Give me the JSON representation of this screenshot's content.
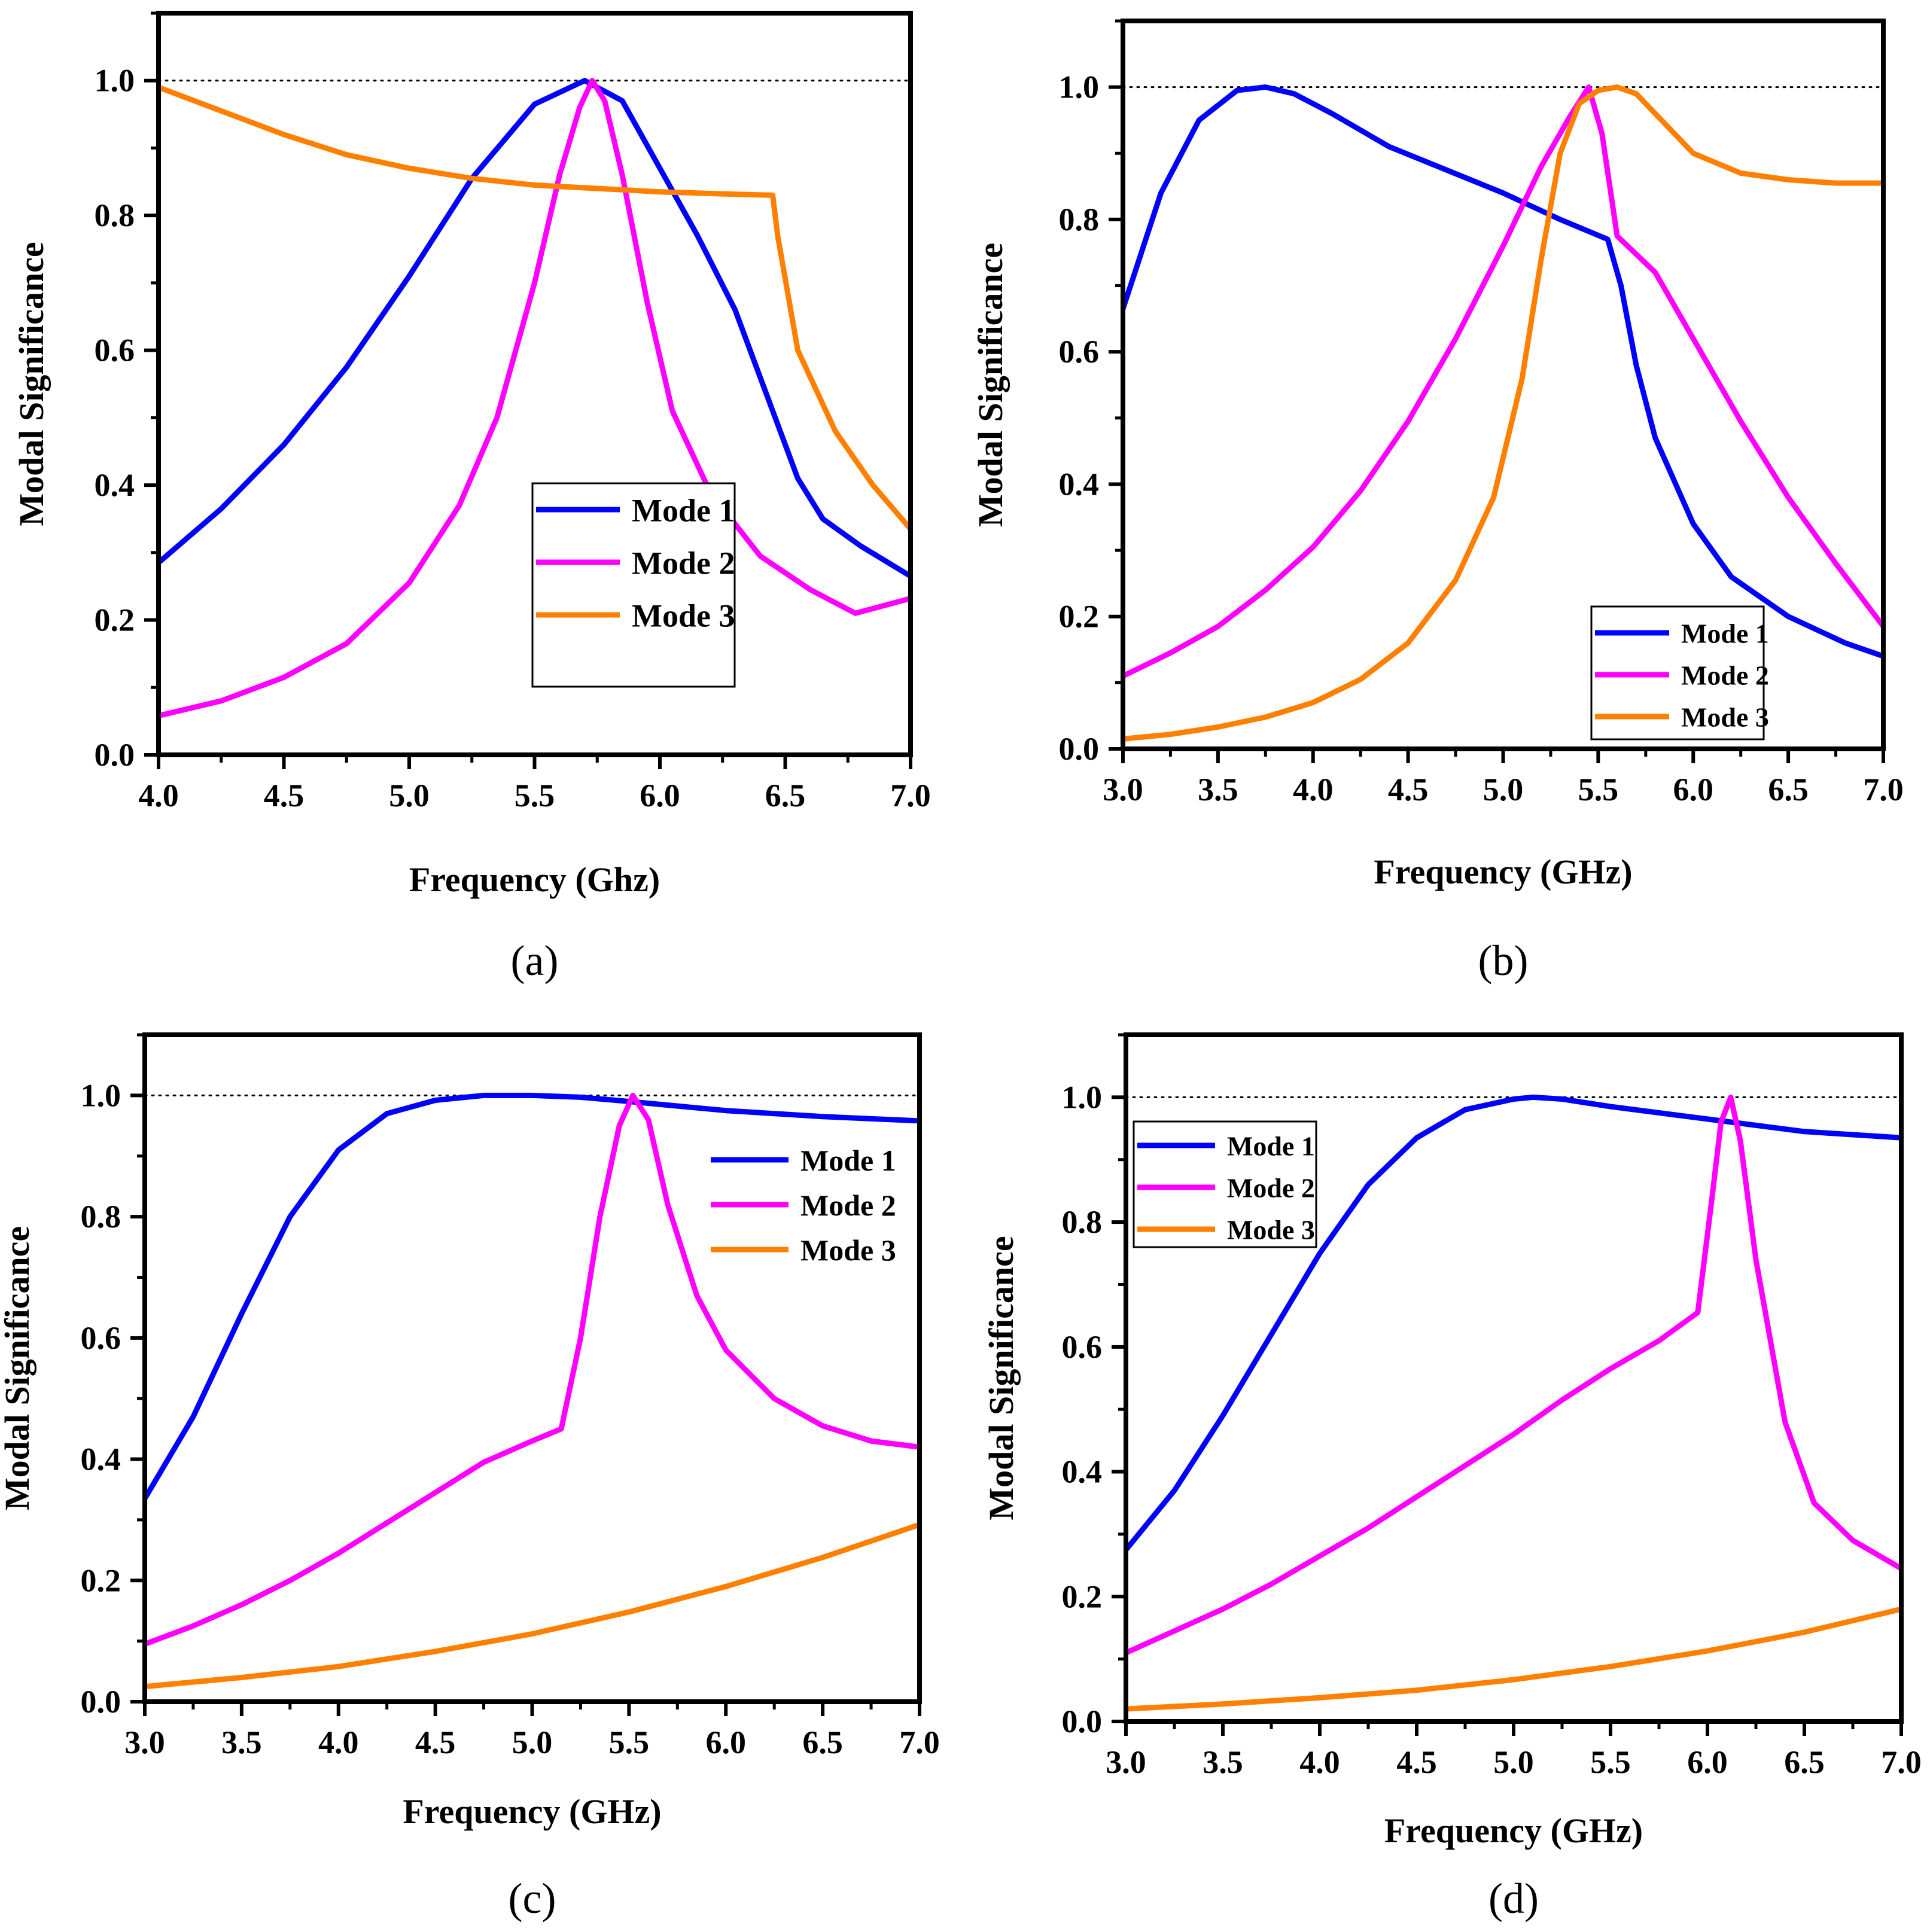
{
  "figure": {
    "mode_colors": {
      "Mode 1": "#0000FF",
      "Mode 2": "#FF00FF",
      "Mode 3": "#FF8000"
    }
  },
  "chart_data": [
    {
      "id": "a",
      "panel_label": "(a)",
      "type": "line",
      "xlabel": "Frequency (Ghz)",
      "ylabel": "Modal Significance",
      "xlim": [
        4.0,
        7.0
      ],
      "ylim": [
        0.0,
        1.1
      ],
      "xticks": [
        4.0,
        4.5,
        5.0,
        5.5,
        6.0,
        6.5,
        7.0
      ],
      "yticks": [
        0.0,
        0.2,
        0.4,
        0.6,
        0.8,
        1.0
      ],
      "xtick_labels": [
        "4.0",
        "4.5",
        "5.0",
        "5.5",
        "6.0",
        "6.5",
        "7.0"
      ],
      "ytick_labels": [
        "0.0",
        "0.2",
        "0.4",
        "0.6",
        "0.8",
        "1.0"
      ],
      "reference_line": 1.0,
      "legend": "center-right",
      "series": [
        {
          "name": "Mode 1",
          "color": "#0000FF",
          "x": [
            4.0,
            4.25,
            4.5,
            4.75,
            5.0,
            5.25,
            5.5,
            5.7,
            5.85,
            6.0,
            6.15,
            6.3,
            6.45,
            6.55,
            6.65,
            6.8,
            7.0
          ],
          "y": [
            0.285,
            0.365,
            0.46,
            0.575,
            0.71,
            0.855,
            0.965,
            1.0,
            0.97,
            0.87,
            0.77,
            0.66,
            0.51,
            0.41,
            0.35,
            0.31,
            0.265
          ]
        },
        {
          "name": "Mode 2",
          "color": "#FF00FF",
          "x": [
            4.0,
            4.25,
            4.5,
            4.75,
            5.0,
            5.2,
            5.35,
            5.5,
            5.6,
            5.68,
            5.73,
            5.78,
            5.85,
            5.95,
            6.05,
            6.2,
            6.4,
            6.6,
            6.78,
            7.0
          ],
          "y": [
            0.058,
            0.08,
            0.115,
            0.165,
            0.255,
            0.37,
            0.5,
            0.7,
            0.86,
            0.96,
            1.0,
            0.97,
            0.86,
            0.67,
            0.51,
            0.39,
            0.295,
            0.245,
            0.21,
            0.232
          ]
        },
        {
          "name": "Mode 3",
          "color": "#FF8000",
          "x": [
            4.0,
            4.25,
            4.5,
            4.75,
            5.0,
            5.25,
            5.5,
            5.75,
            6.0,
            6.25,
            6.45,
            6.47,
            6.55,
            6.7,
            6.85,
            7.0
          ],
          "y": [
            0.99,
            0.955,
            0.92,
            0.89,
            0.87,
            0.855,
            0.845,
            0.84,
            0.835,
            0.832,
            0.83,
            0.77,
            0.6,
            0.48,
            0.4,
            0.335
          ]
        }
      ]
    },
    {
      "id": "b",
      "panel_label": "(b)",
      "type": "line",
      "xlabel": "Frequency (GHz)",
      "ylabel": "Modal Significance",
      "xlim": [
        3.0,
        7.0
      ],
      "ylim": [
        0.0,
        1.1
      ],
      "xticks": [
        3.0,
        3.5,
        4.0,
        4.5,
        5.0,
        5.5,
        6.0,
        6.5,
        7.0
      ],
      "yticks": [
        0.0,
        0.2,
        0.4,
        0.6,
        0.8,
        1.0
      ],
      "xtick_labels": [
        "3.0",
        "3.5",
        "4.0",
        "4.5",
        "5.0",
        "5.5",
        "6.0",
        "6.5",
        "7.0"
      ],
      "ytick_labels": [
        "0.0",
        "0.2",
        "0.4",
        "0.6",
        "0.8",
        "1.0"
      ],
      "reference_line": 1.0,
      "legend": "bottom-right",
      "series": [
        {
          "name": "Mode 1",
          "color": "#0000FF",
          "x": [
            3.0,
            3.2,
            3.4,
            3.6,
            3.75,
            3.9,
            4.1,
            4.4,
            4.7,
            5.0,
            5.3,
            5.55,
            5.62,
            5.7,
            5.8,
            6.0,
            6.2,
            6.5,
            6.8,
            7.0
          ],
          "y": [
            0.665,
            0.84,
            0.95,
            0.995,
            1.0,
            0.99,
            0.96,
            0.91,
            0.875,
            0.84,
            0.8,
            0.77,
            0.7,
            0.58,
            0.47,
            0.34,
            0.26,
            0.2,
            0.16,
            0.14
          ]
        },
        {
          "name": "Mode 2",
          "color": "#FF00FF",
          "x": [
            3.0,
            3.25,
            3.5,
            3.75,
            4.0,
            4.25,
            4.5,
            4.75,
            5.0,
            5.2,
            5.35,
            5.45,
            5.52,
            5.6,
            5.8,
            6.0,
            6.25,
            6.5,
            6.75,
            7.0
          ],
          "y": [
            0.11,
            0.145,
            0.185,
            0.24,
            0.305,
            0.39,
            0.495,
            0.62,
            0.76,
            0.88,
            0.955,
            1.0,
            0.93,
            0.775,
            0.72,
            0.62,
            0.495,
            0.38,
            0.28,
            0.185
          ]
        },
        {
          "name": "Mode 3",
          "color": "#FF8000",
          "x": [
            3.0,
            3.25,
            3.5,
            3.75,
            4.0,
            4.25,
            4.5,
            4.75,
            4.95,
            5.1,
            5.2,
            5.3,
            5.4,
            5.5,
            5.6,
            5.7,
            5.8,
            6.0,
            6.25,
            6.5,
            6.75,
            7.0
          ],
          "y": [
            0.015,
            0.022,
            0.033,
            0.048,
            0.07,
            0.105,
            0.16,
            0.255,
            0.38,
            0.56,
            0.74,
            0.9,
            0.975,
            0.995,
            1.0,
            0.99,
            0.96,
            0.9,
            0.87,
            0.86,
            0.855,
            0.855
          ]
        }
      ]
    },
    {
      "id": "c",
      "panel_label": "(c)",
      "type": "line",
      "xlabel": "Frequency (GHz)",
      "ylabel": "Modal Significance",
      "xlim": [
        3.0,
        7.0
      ],
      "ylim": [
        0.0,
        1.1
      ],
      "xticks": [
        3.0,
        3.5,
        4.0,
        4.5,
        5.0,
        5.5,
        6.0,
        6.5,
        7.0
      ],
      "yticks": [
        0.0,
        0.2,
        0.4,
        0.6,
        0.8,
        1.0
      ],
      "xtick_labels": [
        "3.0",
        "3.5",
        "4.0",
        "4.5",
        "5.0",
        "5.5",
        "6.0",
        "6.5",
        "7.0"
      ],
      "ytick_labels": [
        "0.0",
        "0.2",
        "0.4",
        "0.6",
        "0.8",
        "1.0"
      ],
      "reference_line": 1.0,
      "legend": "top-right",
      "series": [
        {
          "name": "Mode 1",
          "color": "#0000FF",
          "x": [
            3.0,
            3.25,
            3.5,
            3.75,
            4.0,
            4.25,
            4.5,
            4.75,
            5.0,
            5.25,
            5.5,
            6.0,
            6.5,
            7.0
          ],
          "y": [
            0.335,
            0.47,
            0.64,
            0.8,
            0.91,
            0.97,
            0.992,
            1.0,
            1.0,
            0.997,
            0.99,
            0.975,
            0.965,
            0.958
          ]
        },
        {
          "name": "Mode 2",
          "color": "#FF00FF",
          "x": [
            3.0,
            3.25,
            3.5,
            3.75,
            4.0,
            4.25,
            4.5,
            4.75,
            5.0,
            5.15,
            5.25,
            5.35,
            5.45,
            5.52,
            5.6,
            5.7,
            5.85,
            6.0,
            6.25,
            6.5,
            6.75,
            7.0
          ],
          "y": [
            0.095,
            0.125,
            0.16,
            0.2,
            0.245,
            0.295,
            0.345,
            0.395,
            0.43,
            0.45,
            0.6,
            0.8,
            0.95,
            1.0,
            0.96,
            0.82,
            0.67,
            0.58,
            0.5,
            0.455,
            0.43,
            0.42
          ]
        },
        {
          "name": "Mode 3",
          "color": "#FF8000",
          "x": [
            3.0,
            3.5,
            4.0,
            4.5,
            5.0,
            5.5,
            6.0,
            6.5,
            7.0
          ],
          "y": [
            0.025,
            0.04,
            0.058,
            0.083,
            0.112,
            0.148,
            0.19,
            0.238,
            0.292
          ]
        }
      ]
    },
    {
      "id": "d",
      "panel_label": "(d)",
      "type": "line",
      "xlabel": "Frequency (GHz)",
      "ylabel": "Modal Significance",
      "xlim": [
        3.0,
        7.0
      ],
      "ylim": [
        0.0,
        1.1
      ],
      "xticks": [
        3.0,
        3.5,
        4.0,
        4.5,
        5.0,
        5.5,
        6.0,
        6.5,
        7.0
      ],
      "yticks": [
        0.0,
        0.2,
        0.4,
        0.6,
        0.8,
        1.0
      ],
      "xtick_labels": [
        "3.0",
        "3.5",
        "4.0",
        "4.5",
        "5.0",
        "5.5",
        "6.0",
        "6.5",
        "7.0"
      ],
      "ytick_labels": [
        "0.0",
        "0.2",
        "0.4",
        "0.6",
        "0.8",
        "1.0"
      ],
      "reference_line": 1.0,
      "legend": "top-left",
      "series": [
        {
          "name": "Mode 1",
          "color": "#0000FF",
          "x": [
            3.0,
            3.25,
            3.5,
            3.75,
            4.0,
            4.25,
            4.5,
            4.75,
            5.0,
            5.1,
            5.25,
            5.5,
            6.0,
            6.5,
            7.0
          ],
          "y": [
            0.275,
            0.37,
            0.49,
            0.62,
            0.75,
            0.86,
            0.935,
            0.98,
            0.997,
            1.0,
            0.997,
            0.985,
            0.965,
            0.945,
            0.935
          ]
        },
        {
          "name": "Mode 2",
          "color": "#FF00FF",
          "x": [
            3.0,
            3.25,
            3.5,
            3.75,
            4.0,
            4.25,
            4.5,
            4.75,
            5.0,
            5.25,
            5.5,
            5.75,
            5.95,
            6.02,
            6.07,
            6.12,
            6.17,
            6.25,
            6.4,
            6.55,
            6.75,
            7.0
          ],
          "y": [
            0.11,
            0.145,
            0.18,
            0.22,
            0.265,
            0.31,
            0.36,
            0.41,
            0.46,
            0.515,
            0.565,
            0.61,
            0.655,
            0.83,
            0.96,
            1.0,
            0.93,
            0.74,
            0.48,
            0.35,
            0.29,
            0.245
          ]
        },
        {
          "name": "Mode 3",
          "color": "#FF8000",
          "x": [
            3.0,
            3.5,
            4.0,
            4.5,
            5.0,
            5.5,
            6.0,
            6.5,
            7.0
          ],
          "y": [
            0.02,
            0.028,
            0.038,
            0.05,
            0.067,
            0.088,
            0.113,
            0.143,
            0.18
          ]
        }
      ]
    }
  ]
}
